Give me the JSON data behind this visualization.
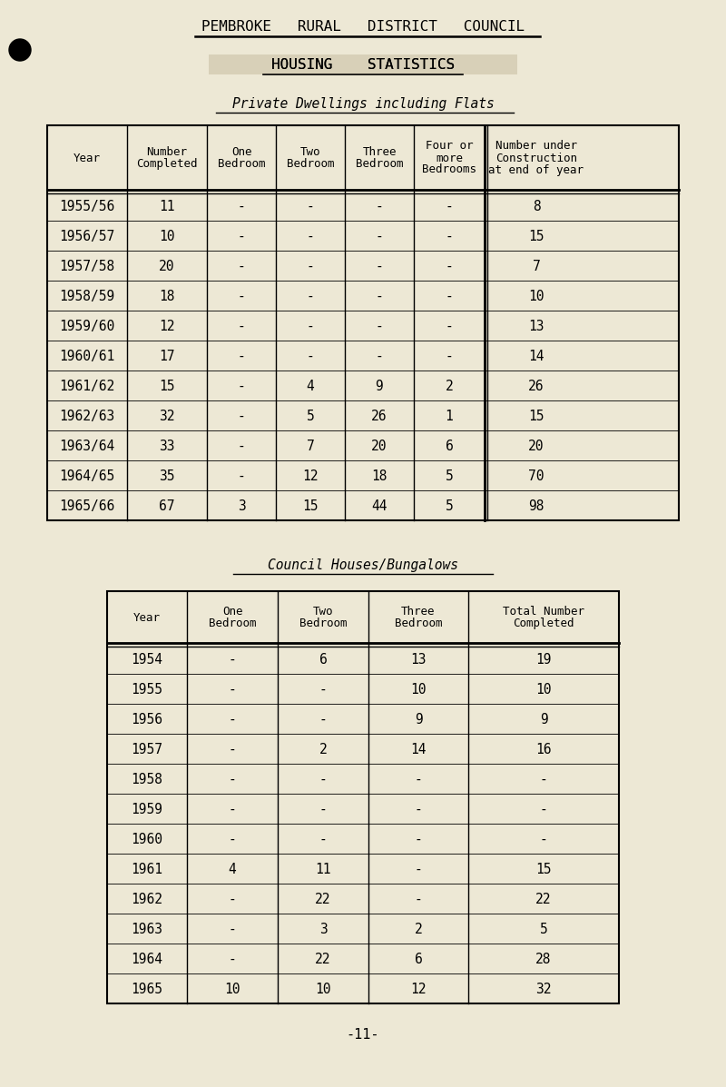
{
  "bg_color": "#ede8d5",
  "title_main": "PEMBROKE   RURAL   DISTRICT   COUNCIL",
  "title_sub": "HOUSING    STATISTICS",
  "title_section1": "Private Dwellings including Flats",
  "title_section2": "Council Houses/Bungalows",
  "page_number": "-11-",
  "table1": {
    "headers": [
      "Year",
      "Number\nCompleted",
      "One\nBedroom",
      "Two\nBedroom",
      "Three\nBedroom",
      "Four or\nmore\nBedrooms",
      "Number under\nConstruction\nat end of year"
    ],
    "rows": [
      [
        "1955/56",
        "11",
        "-",
        "-",
        "-",
        "-",
        "8"
      ],
      [
        "1956/57",
        "10",
        "-",
        "-",
        "-",
        "-",
        "15"
      ],
      [
        "1957/58",
        "20",
        "-",
        "-",
        "-",
        "-",
        "7"
      ],
      [
        "1958/59",
        "18",
        "-",
        "-",
        "-",
        "-",
        "10"
      ],
      [
        "1959/60",
        "12",
        "-",
        "-",
        "-",
        "-",
        "13"
      ],
      [
        "1960/61",
        "17",
        "-",
        "-",
        "-",
        "-",
        "14"
      ],
      [
        "1961/62",
        "15",
        "-",
        "4",
        "9",
        "2",
        "26"
      ],
      [
        "1962/63",
        "32",
        "-",
        "5",
        "26",
        "1",
        "15"
      ],
      [
        "1963/64",
        "33",
        "-",
        "7",
        "20",
        "6",
        "20"
      ],
      [
        "1964/65",
        "35",
        "-",
        "12",
        "18",
        "5",
        "70"
      ],
      [
        "1965/66",
        "67",
        "3",
        "15",
        "44",
        "5",
        "98"
      ]
    ]
  },
  "table2": {
    "headers": [
      "Year",
      "One\nBedroom",
      "Two\nBedroom",
      "Three\nBedroom",
      "Total Number\nCompleted"
    ],
    "rows": [
      [
        "1954",
        "-",
        "6",
        "13",
        "19"
      ],
      [
        "1955",
        "-",
        "-",
        "10",
        "10"
      ],
      [
        "1956",
        "-",
        "-",
        "9",
        "9"
      ],
      [
        "1957",
        "-",
        "2",
        "14",
        "16"
      ],
      [
        "1958",
        "-",
        "-",
        "-",
        "-"
      ],
      [
        "1959",
        "-",
        "-",
        "-",
        "-"
      ],
      [
        "1960",
        "-",
        "-",
        "-",
        "-"
      ],
      [
        "1961",
        "4",
        "11",
        "-",
        "15"
      ],
      [
        "1962",
        "-",
        "22",
        "-",
        "22"
      ],
      [
        "1963",
        "-",
        "3",
        "2",
        "5"
      ],
      [
        "1964",
        "-",
        "22",
        "6",
        "28"
      ],
      [
        "1965",
        "10",
        "10",
        "12",
        "32"
      ]
    ]
  }
}
